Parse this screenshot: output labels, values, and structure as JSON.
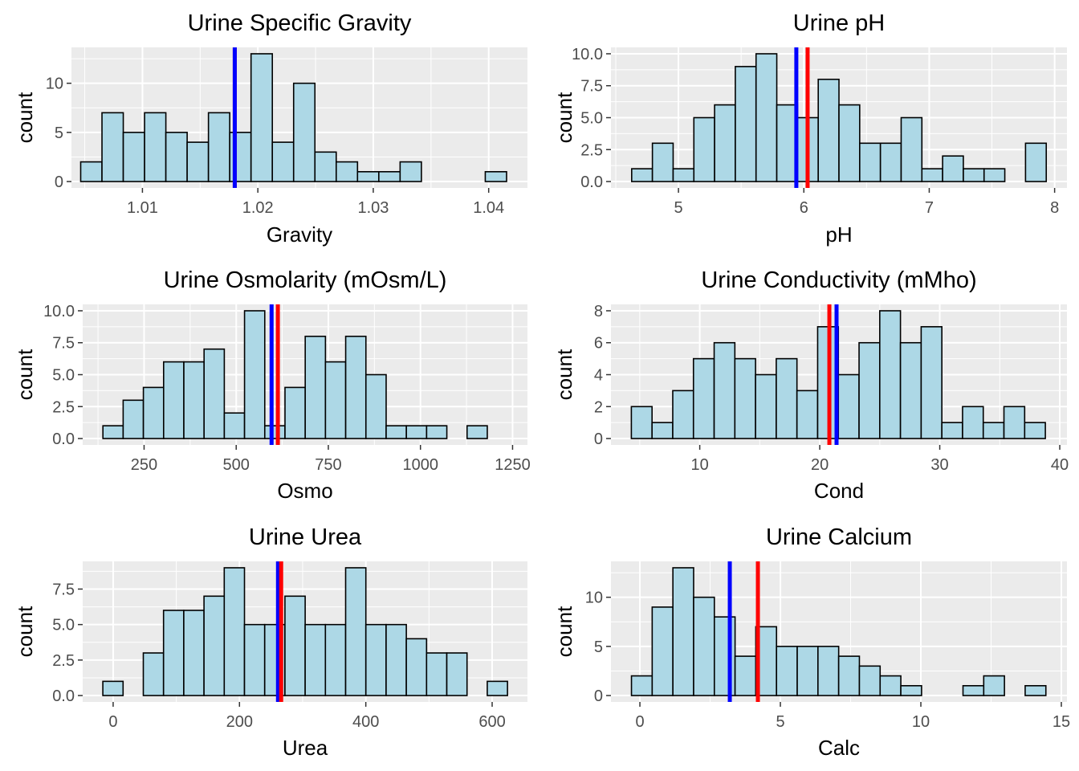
{
  "chart_data": [
    {
      "type": "bar",
      "title": "Urine Specific Gravity",
      "xlabel": "Gravity",
      "ylabel": "count",
      "xlim": [
        1.00385,
        1.04336
      ],
      "ylim": [
        -0.65,
        13.65
      ],
      "x_breaks": [
        1.01,
        1.02,
        1.03,
        1.04
      ],
      "x_tick_labels": [
        "1.01",
        "1.02",
        "1.03",
        "1.04"
      ],
      "y_breaks": [
        0,
        5,
        10
      ],
      "y_tick_labels": [
        "0",
        "5",
        "10"
      ],
      "bin_start": 1.00465,
      "bin_width": 0.001845,
      "counts": [
        2,
        7,
        5,
        7,
        5,
        4,
        7,
        5,
        13,
        4,
        10,
        3,
        2,
        1,
        1,
        2,
        0,
        0,
        0,
        1
      ],
      "vlines": [
        {
          "color": "#ff0000",
          "x": 1.018
        },
        {
          "color": "#0000ff",
          "x": 1.018
        }
      ],
      "fill_color": "#add8e6",
      "grid": true
    },
    {
      "type": "bar",
      "title": "Urine pH",
      "xlabel": "pH",
      "ylabel": "count",
      "xlim": [
        4.4616,
        8.0984
      ],
      "ylim": [
        -0.5,
        10.5
      ],
      "x_breaks": [
        5,
        6,
        7,
        8
      ],
      "x_tick_labels": [
        "5",
        "6",
        "7",
        "8"
      ],
      "y_breaks": [
        0,
        2.5,
        5,
        7.5,
        10
      ],
      "y_tick_labels": [
        "0.0",
        "2.5",
        "5.0",
        "7.5",
        "10.0"
      ],
      "bin_start": 4.6269,
      "bin_width": 0.16532,
      "counts": [
        1,
        3,
        1,
        5,
        6,
        9,
        10,
        6,
        5,
        8,
        6,
        3,
        3,
        5,
        1,
        2,
        1,
        1,
        0,
        3
      ],
      "vlines": [
        {
          "color": "#0000ff",
          "x": 5.94
        },
        {
          "color": "#ff0000",
          "x": 6.03
        }
      ],
      "fill_color": "#add8e6",
      "grid": true
    },
    {
      "type": "bar",
      "title": "Urine Osmolarity (mOsm/L)",
      "xlabel": "Osmo",
      "ylabel": "count",
      "xlim": [
        83.4,
        1290.4
      ],
      "ylim": [
        -0.5,
        10.5
      ],
      "x_breaks": [
        250,
        500,
        750,
        1000,
        1250
      ],
      "x_tick_labels": [
        "250",
        "500",
        "750",
        "1000",
        "1250"
      ],
      "y_breaks": [
        0,
        2.5,
        5,
        7.5,
        10
      ],
      "y_tick_labels": [
        "0.0",
        "2.5",
        "5.0",
        "7.5",
        "10.0"
      ],
      "bin_start": 138.3,
      "bin_width": 54.9,
      "counts": [
        1,
        3,
        4,
        6,
        6,
        7,
        2,
        10,
        1,
        4,
        8,
        6,
        8,
        5,
        1,
        1,
        1,
        0,
        1
      ],
      "vlines": [
        {
          "color": "#0000ff",
          "x": 596
        },
        {
          "color": "#ff0000",
          "x": 613
        }
      ],
      "fill_color": "#add8e6",
      "grid": true
    },
    {
      "type": "bar",
      "title": "Urine Conductivity (mMho)",
      "xlabel": "Cond",
      "ylabel": "count",
      "xlim": [
        2.6,
        40.6
      ],
      "ylim": [
        -0.4,
        8.4
      ],
      "x_breaks": [
        10,
        20,
        30,
        40
      ],
      "x_tick_labels": [
        "10",
        "20",
        "30",
        "40"
      ],
      "y_breaks": [
        0,
        2,
        4,
        6,
        8
      ],
      "y_tick_labels": [
        "0",
        "2",
        "4",
        "6",
        "8"
      ],
      "bin_start": 4.3,
      "bin_width": 1.725,
      "counts": [
        2,
        1,
        3,
        5,
        6,
        5,
        4,
        5,
        3,
        7,
        4,
        6,
        8,
        6,
        7,
        1,
        2,
        1,
        2,
        1
      ],
      "vlines": [
        {
          "color": "#ff0000",
          "x": 20.8
        },
        {
          "color": "#0000ff",
          "x": 21.4
        }
      ],
      "fill_color": "#add8e6",
      "grid": true
    },
    {
      "type": "bar",
      "title": "Urine Urea",
      "xlabel": "Urea",
      "ylabel": "count",
      "xlim": [
        -48.2,
        655.9
      ],
      "ylim": [
        -0.45,
        9.45
      ],
      "x_breaks": [
        0,
        200,
        400,
        600
      ],
      "x_tick_labels": [
        "0",
        "200",
        "400",
        "600"
      ],
      "y_breaks": [
        0,
        2.5,
        5,
        7.5
      ],
      "y_tick_labels": [
        "0.0",
        "2.5",
        "5.0",
        "7.5"
      ],
      "bin_start": -16.3,
      "bin_width": 32.03,
      "counts": [
        1,
        0,
        3,
        6,
        6,
        7,
        9,
        5,
        5,
        7,
        5,
        5,
        9,
        5,
        5,
        4,
        3,
        3,
        0,
        1
      ],
      "vlines": [
        {
          "color": "#0000ff",
          "x": 261
        },
        {
          "color": "#ff0000",
          "x": 266
        }
      ],
      "fill_color": "#add8e6",
      "grid": true
    },
    {
      "type": "bar",
      "title": "Urine Calcium",
      "xlabel": "Calc",
      "ylabel": "count",
      "xlim": [
        -1.03,
        15.2
      ],
      "ylim": [
        -0.65,
        13.65
      ],
      "x_breaks": [
        0,
        5,
        10,
        15
      ],
      "x_tick_labels": [
        "0",
        "5",
        "10",
        "15"
      ],
      "y_breaks": [
        0,
        5,
        10
      ],
      "y_tick_labels": [
        "0",
        "5",
        "10"
      ],
      "bin_start": -0.3,
      "bin_width": 0.7375,
      "counts": [
        2,
        9,
        13,
        10,
        8,
        4,
        7,
        5,
        5,
        5,
        4,
        3,
        2,
        1,
        0,
        0,
        1,
        2,
        0,
        1
      ],
      "vlines": [
        {
          "color": "#0000ff",
          "x": 3.2
        },
        {
          "color": "#ff0000",
          "x": 4.2
        }
      ],
      "fill_color": "#add8e6",
      "grid": true
    }
  ]
}
